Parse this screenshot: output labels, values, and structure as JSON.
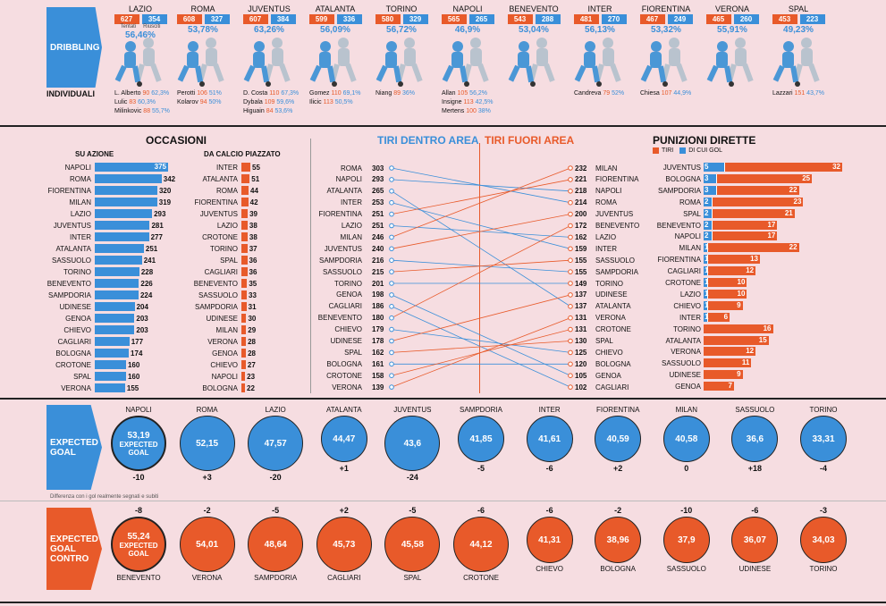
{
  "colors": {
    "orange": "#e85a2a",
    "blue": "#3a8fd9",
    "bg": "#f6dde1",
    "dark": "#2a2a2a"
  },
  "dribbling": {
    "label": "DRIBBLING",
    "tentati_label": "Tentati",
    "riusciti_label": "Riusciti",
    "teams": [
      {
        "name": "LAZIO",
        "tentati": "627",
        "riusciti": "354",
        "pct": "56,46%"
      },
      {
        "name": "ROMA",
        "tentati": "608",
        "riusciti": "327",
        "pct": "53,78%"
      },
      {
        "name": "JUVENTUS",
        "tentati": "607",
        "riusciti": "384",
        "pct": "63,26%"
      },
      {
        "name": "ATALANTA",
        "tentati": "599",
        "riusciti": "336",
        "pct": "56,09%"
      },
      {
        "name": "TORINO",
        "tentati": "580",
        "riusciti": "329",
        "pct": "56,72%"
      },
      {
        "name": "NAPOLI",
        "tentati": "565",
        "riusciti": "265",
        "pct": "46,9%"
      },
      {
        "name": "BENEVENTO",
        "tentati": "543",
        "riusciti": "288",
        "pct": "53,04%"
      },
      {
        "name": "INTER",
        "tentati": "481",
        "riusciti": "270",
        "pct": "56,13%"
      },
      {
        "name": "FIORENTINA",
        "tentati": "467",
        "riusciti": "249",
        "pct": "53,32%"
      },
      {
        "name": "VERONA",
        "tentati": "465",
        "riusciti": "260",
        "pct": "55,91%"
      },
      {
        "name": "SPAL",
        "tentati": "453",
        "riusciti": "223",
        "pct": "49,23%"
      }
    ]
  },
  "individuali": {
    "label": "INDIVIDUALI",
    "groups": [
      [
        {
          "n": "L. Alberto",
          "a": "90",
          "p": "62,3%"
        },
        {
          "n": "Lulic",
          "a": "83",
          "p": "60,3%"
        },
        {
          "n": "Milinkovic",
          "a": "88",
          "p": "55,7%"
        }
      ],
      [
        {
          "n": "Perotti",
          "a": "106",
          "p": "51%"
        },
        {
          "n": "Kolarov",
          "a": "94",
          "p": "50%"
        }
      ],
      [
        {
          "n": "D. Costa",
          "a": "110",
          "p": "67,3%"
        },
        {
          "n": "Dybala",
          "a": "109",
          "p": "59,6%"
        },
        {
          "n": "Higuain",
          "a": "84",
          "p": "53,6%"
        }
      ],
      [
        {
          "n": "Gomez",
          "a": "110",
          "p": "69,1%"
        },
        {
          "n": "Ilicic",
          "a": "113",
          "p": "50,5%"
        }
      ],
      [
        {
          "n": "Niang",
          "a": "89",
          "p": "36%"
        }
      ],
      [
        {
          "n": "Allan",
          "a": "105",
          "p": "56,2%"
        },
        {
          "n": "Insigne",
          "a": "113",
          "p": "42,5%"
        },
        {
          "n": "Mertens",
          "a": "100",
          "p": "38%"
        }
      ],
      [],
      [
        {
          "n": "Candreva",
          "a": "79",
          "p": "52%"
        }
      ],
      [
        {
          "n": "Chiesa",
          "a": "107",
          "p": "44,9%"
        }
      ],
      [],
      [
        {
          "n": "Lazzari",
          "a": "151",
          "p": "43,7%"
        }
      ]
    ]
  },
  "occasioni": {
    "title": "OCCASIONI",
    "azione_title": "SU AZIONE",
    "piazzato_title": "DA CALCIO PIAZZATO",
    "azione": [
      [
        "NAPOLI",
        375
      ],
      [
        "ROMA",
        342
      ],
      [
        "FIORENTINA",
        320
      ],
      [
        "MILAN",
        319
      ],
      [
        "LAZIO",
        293
      ],
      [
        "JUVENTUS",
        281
      ],
      [
        "INTER",
        277
      ],
      [
        "ATALANTA",
        251
      ],
      [
        "SASSUOLO",
        241
      ],
      [
        "TORINO",
        228
      ],
      [
        "BENEVENTO",
        226
      ],
      [
        "SAMPDORIA",
        224
      ],
      [
        "UDINESE",
        204
      ],
      [
        "GENOA",
        203
      ],
      [
        "CHIEVO",
        203
      ],
      [
        "CAGLIARI",
        177
      ],
      [
        "BOLOGNA",
        174
      ],
      [
        "CROTONE",
        160
      ],
      [
        "SPAL",
        160
      ],
      [
        "VERONA",
        155
      ]
    ],
    "piazzato": [
      [
        "INTER",
        55
      ],
      [
        "ATALANTA",
        51
      ],
      [
        "ROMA",
        44
      ],
      [
        "FIORENTINA",
        42
      ],
      [
        "JUVENTUS",
        39
      ],
      [
        "LAZIO",
        38
      ],
      [
        "CROTONE",
        38
      ],
      [
        "TORINO",
        37
      ],
      [
        "SPAL",
        36
      ],
      [
        "CAGLIARI",
        36
      ],
      [
        "BENEVENTO",
        35
      ],
      [
        "SASSUOLO",
        33
      ],
      [
        "SAMPDORIA",
        31
      ],
      [
        "UDINESE",
        30
      ],
      [
        "MILAN",
        29
      ],
      [
        "VERONA",
        28
      ],
      [
        "GENOA",
        28
      ],
      [
        "CHIEVO",
        27
      ],
      [
        "NAPOLI",
        23
      ],
      [
        "BOLOGNA",
        22
      ]
    ]
  },
  "tiri": {
    "dentro_title": "TIRI DENTRO AREA",
    "fuori_title": "TIRI FUORI AREA",
    "dentro": [
      [
        "ROMA",
        303
      ],
      [
        "NAPOLI",
        293
      ],
      [
        "ATALANTA",
        265
      ],
      [
        "INTER",
        253
      ],
      [
        "FIORENTINA",
        251
      ],
      [
        "LAZIO",
        251
      ],
      [
        "MILAN",
        246
      ],
      [
        "JUVENTUS",
        240
      ],
      [
        "SAMPDORIA",
        216
      ],
      [
        "SASSUOLO",
        215
      ],
      [
        "TORINO",
        201
      ],
      [
        "GENOA",
        198
      ],
      [
        "CAGLIARI",
        186
      ],
      [
        "BENEVENTO",
        180
      ],
      [
        "CHIEVO",
        179
      ],
      [
        "UDINESE",
        178
      ],
      [
        "SPAL",
        162
      ],
      [
        "BOLOGNA",
        161
      ],
      [
        "CROTONE",
        158
      ],
      [
        "VERONA",
        139
      ]
    ],
    "fuori": [
      [
        "MILAN",
        232
      ],
      [
        "FIORENTINA",
        221
      ],
      [
        "NAPOLI",
        218
      ],
      [
        "ROMA",
        214
      ],
      [
        "JUVENTUS",
        200
      ],
      [
        "BENEVENTO",
        172
      ],
      [
        "LAZIO",
        162
      ],
      [
        "INTER",
        159
      ],
      [
        "SASSUOLO",
        155
      ],
      [
        "SAMPDORIA",
        155
      ],
      [
        "TORINO",
        149
      ],
      [
        "UDINESE",
        137
      ],
      [
        "ATALANTA",
        137
      ],
      [
        "VERONA",
        131
      ],
      [
        "CROTONE",
        131
      ],
      [
        "SPAL",
        130
      ],
      [
        "CHIEVO",
        125
      ],
      [
        "BOLOGNA",
        120
      ],
      [
        "GENOA",
        105
      ],
      [
        "CAGLIARI",
        102
      ]
    ]
  },
  "punizioni": {
    "title": "PUNIZIONI DIRETTE",
    "legend_tiri": "TIRI",
    "legend_gol": "DI CUI GOL",
    "rows": [
      [
        "JUVENTUS",
        32,
        5
      ],
      [
        "BOLOGNA",
        25,
        3
      ],
      [
        "SAMPDORIA",
        22,
        3
      ],
      [
        "ROMA",
        23,
        2
      ],
      [
        "SPAL",
        21,
        2
      ],
      [
        "BENEVENTO",
        17,
        2
      ],
      [
        "NAPOLI",
        17,
        2
      ],
      [
        "MILAN",
        22,
        1
      ],
      [
        "FIORENTINA",
        13,
        1
      ],
      [
        "CAGLIARI",
        12,
        1
      ],
      [
        "CROTONE",
        10,
        1
      ],
      [
        "LAZIO",
        10,
        1
      ],
      [
        "CHIEVO",
        9,
        1
      ],
      [
        "INTER",
        6,
        1
      ],
      [
        "TORINO",
        16,
        0
      ],
      [
        "ATALANTA",
        15,
        0
      ],
      [
        "VERONA",
        12,
        0
      ],
      [
        "SASSUOLO",
        11,
        0
      ],
      [
        "UDINESE",
        9,
        0
      ],
      [
        "GENOA",
        7,
        0
      ]
    ]
  },
  "xg": {
    "label1": "EXPECTED",
    "label2": "GOAL",
    "expected_text1": "EXPECTED",
    "expected_text2": "GOAL",
    "note": "Differenza con i gol realmente segnati e subiti",
    "teams": [
      [
        "NAPOLI",
        "53,19",
        "-10"
      ],
      [
        "ROMA",
        "52,15",
        "+3"
      ],
      [
        "LAZIO",
        "47,57",
        "-20"
      ],
      [
        "ATALANTA",
        "44,47",
        "+1"
      ],
      [
        "JUVENTUS",
        "43,6",
        "-24"
      ],
      [
        "SAMPDORIA",
        "41,85",
        "-5"
      ],
      [
        "INTER",
        "41,61",
        "-6"
      ],
      [
        "FIORENTINA",
        "40,59",
        "+2"
      ],
      [
        "MILAN",
        "40,58",
        "0"
      ],
      [
        "SASSUOLO",
        "36,6",
        "+18"
      ],
      [
        "TORINO",
        "33,31",
        "-4"
      ]
    ]
  },
  "xgc": {
    "label1": "EXPECTED",
    "label2": "GOAL",
    "label3": "CONTRO",
    "teams": [
      [
        "BENEVENTO",
        "55,24",
        "-8"
      ],
      [
        "VERONA",
        "54,01",
        "-2"
      ],
      [
        "SAMPDORIA",
        "48,64",
        "-5"
      ],
      [
        "CAGLIARI",
        "45,73",
        "+2"
      ],
      [
        "SPAL",
        "45,58",
        "-5"
      ],
      [
        "CROTONE",
        "44,12",
        "-6"
      ],
      [
        "CHIEVO",
        "41,31",
        "-6"
      ],
      [
        "BOLOGNA",
        "38,96",
        "-2"
      ],
      [
        "SASSUOLO",
        "37,9",
        "-10"
      ],
      [
        "UDINESE",
        "36,07",
        "-6"
      ],
      [
        "TORINO",
        "34,03",
        "-3"
      ]
    ]
  }
}
